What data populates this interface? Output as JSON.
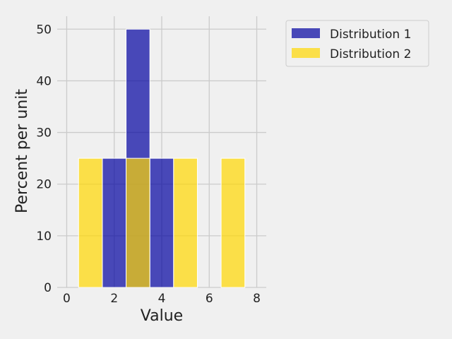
{
  "chart_data": {
    "type": "bar",
    "title": "",
    "xlabel": "Value",
    "ylabel": "Percent per unit",
    "xlim": [
      -0.4,
      8.4
    ],
    "ylim": [
      0,
      52.5
    ],
    "x_ticks": [
      0,
      2,
      4,
      6,
      8
    ],
    "y_ticks": [
      0,
      10,
      20,
      30,
      40,
      50
    ],
    "grid": true,
    "legend_position": "outside-top-right",
    "bin_width": 1,
    "series": [
      {
        "name": "Distribution 1",
        "color": "#0000a0",
        "bins": [
          {
            "left": 1.5,
            "right": 2.5,
            "value": 25
          },
          {
            "left": 2.5,
            "right": 3.5,
            "value": 50
          },
          {
            "left": 3.5,
            "right": 4.5,
            "value": 25
          }
        ]
      },
      {
        "name": "Distribution 2",
        "color": "#ffd700",
        "bins": [
          {
            "left": 0.5,
            "right": 1.5,
            "value": 25
          },
          {
            "left": 2.5,
            "right": 3.5,
            "value": 25
          },
          {
            "left": 4.5,
            "right": 5.5,
            "value": 25
          },
          {
            "left": 6.5,
            "right": 7.5,
            "value": 25
          }
        ]
      }
    ]
  }
}
